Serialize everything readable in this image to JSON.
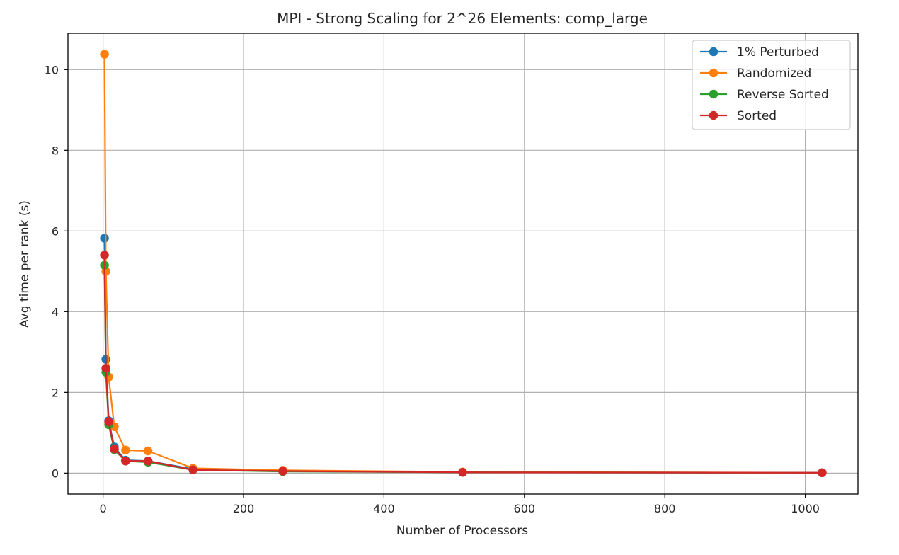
{
  "chart_data": {
    "type": "line",
    "title": "MPI - Strong Scaling for 2^26 Elements: comp_large",
    "xlabel": "Number of Processors",
    "ylabel": "Avg time per rank (s)",
    "xlim": [
      -50,
      1075
    ],
    "ylim": [
      -0.52,
      10.9
    ],
    "xticks": [
      0,
      200,
      400,
      600,
      800,
      1000
    ],
    "yticks": [
      0,
      2,
      4,
      6,
      8,
      10
    ],
    "grid": true,
    "legend_position": "top-right",
    "x": [
      2,
      4,
      8,
      16,
      32,
      64,
      128,
      256,
      512,
      1024
    ],
    "series": [
      {
        "name": "1% Perturbed",
        "color": "#1f77b4",
        "values": [
          5.82,
          2.82,
          1.3,
          0.65,
          0.32,
          0.3,
          0.1,
          0.05,
          0.02,
          0.01
        ]
      },
      {
        "name": "Randomized",
        "color": "#ff7f0e",
        "values": [
          10.38,
          5.0,
          2.38,
          1.15,
          0.57,
          0.55,
          0.12,
          0.07,
          0.03,
          0.01
        ]
      },
      {
        "name": "Reverse Sorted",
        "color": "#2ca02c",
        "values": [
          5.15,
          2.5,
          1.2,
          0.58,
          0.3,
          0.27,
          0.08,
          0.04,
          0.02,
          0.01
        ]
      },
      {
        "name": "Sorted",
        "color": "#d62728",
        "values": [
          5.4,
          2.6,
          1.27,
          0.6,
          0.3,
          0.3,
          0.08,
          0.05,
          0.02,
          0.01
        ]
      }
    ]
  }
}
